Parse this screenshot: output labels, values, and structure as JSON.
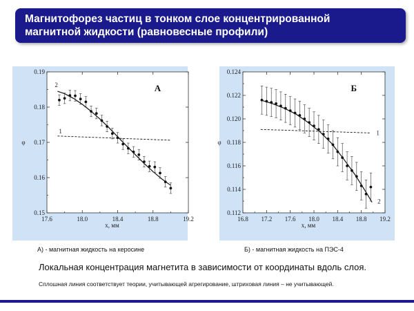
{
  "title": "Магнитофорез частиц в тонком слое концентрированной магнитной жидкости (равновесные профили)",
  "title_lines": [
    "Магнитофорез частиц в тонком слое концентрированной",
    "магнитной жидкости (равновесные профили)"
  ],
  "chart_data": [
    {
      "type": "scatter",
      "panel_label": "А",
      "ylabel": "φ",
      "xlabel": "x, мм",
      "xlim": [
        17.6,
        19.2
      ],
      "ylim": [
        0.15,
        0.19
      ],
      "xticks": [
        "17.6",
        "18.0",
        "18.4",
        "18.8",
        "19.2"
      ],
      "yticks": [
        "0.15",
        "0.16",
        "0.17",
        "0.18",
        "0.19"
      ],
      "grid": false,
      "points": {
        "x": [
          17.74,
          17.8,
          17.86,
          17.92,
          17.98,
          18.04,
          18.1,
          18.16,
          18.22,
          18.28,
          18.34,
          18.4,
          18.46,
          18.52,
          18.58,
          18.64,
          18.7,
          18.76,
          18.82,
          18.88,
          18.94,
          19.0
        ],
        "y": [
          0.182,
          0.1825,
          0.1833,
          0.1832,
          0.1823,
          0.1815,
          0.1788,
          0.1782,
          0.1762,
          0.1745,
          0.1725,
          0.1713,
          0.1695,
          0.1683,
          0.1673,
          0.1665,
          0.1645,
          0.1632,
          0.163,
          0.1613,
          0.1588,
          0.157
        ],
        "err": [
          0.0015,
          0.0015,
          0.0015,
          0.0015,
          0.0015,
          0.0015,
          0.0015,
          0.0015,
          0.0015,
          0.0015,
          0.0015,
          0.0015,
          0.0015,
          0.0015,
          0.0015,
          0.0015,
          0.0015,
          0.0015,
          0.0015,
          0.0015,
          0.0015,
          0.0015
        ]
      },
      "series": [
        {
          "name": "2",
          "style": "solid",
          "x": [
            17.72,
            17.8,
            17.9,
            18.0,
            18.1,
            18.2,
            18.3,
            18.4,
            18.5,
            18.6,
            18.7,
            18.8,
            18.9,
            19.0
          ],
          "y": [
            0.1845,
            0.1838,
            0.1825,
            0.1808,
            0.1788,
            0.1766,
            0.1742,
            0.1716,
            0.169,
            0.1665,
            0.164,
            0.1617,
            0.1596,
            0.1578
          ]
        },
        {
          "name": "1",
          "style": "dashed",
          "x": [
            17.72,
            19.0
          ],
          "y": [
            0.1718,
            0.1706
          ]
        }
      ]
    },
    {
      "type": "scatter",
      "panel_label": "Б",
      "ylabel": "φ",
      "xlabel": "x, мм",
      "xlim": [
        16.8,
        19.2
      ],
      "ylim": [
        0.112,
        0.124
      ],
      "xticks": [
        "16.8",
        "17.2",
        "17.6",
        "18.0",
        "18.4",
        "18.8",
        "19.2"
      ],
      "yticks": [
        "0.112",
        "0.114",
        "0.116",
        "0.118",
        "0.120",
        "0.122",
        "0.124"
      ],
      "grid": false,
      "points": {
        "x": [
          17.12,
          17.2,
          17.28,
          17.36,
          17.44,
          17.52,
          17.6,
          17.68,
          17.76,
          17.84,
          17.92,
          18.0,
          18.08,
          18.16,
          18.24,
          18.32,
          18.4,
          18.48,
          18.56,
          18.64,
          18.72,
          18.8,
          18.88,
          18.96
        ],
        "y": [
          0.1216,
          0.1215,
          0.1214,
          0.1213,
          0.1211,
          0.1209,
          0.1207,
          0.1205,
          0.1203,
          0.12,
          0.1197,
          0.1194,
          0.1191,
          0.1187,
          0.1183,
          0.1178,
          0.1172,
          0.1167,
          0.116,
          0.1156,
          0.1151,
          0.1143,
          0.1136,
          0.1142
        ],
        "err": [
          0.0012,
          0.0012,
          0.0012,
          0.0012,
          0.0012,
          0.0012,
          0.0012,
          0.0012,
          0.0012,
          0.0012,
          0.0012,
          0.0012,
          0.0012,
          0.0012,
          0.0012,
          0.0012,
          0.0012,
          0.0012,
          0.0012,
          0.0012,
          0.0012,
          0.0012,
          0.0012,
          0.0012
        ]
      },
      "series": [
        {
          "name": "2",
          "style": "solid",
          "x": [
            17.1,
            17.3,
            17.5,
            17.7,
            17.9,
            18.1,
            18.3,
            18.5,
            18.7,
            18.9,
            18.98
          ],
          "y": [
            0.1216,
            0.1213,
            0.1209,
            0.1204,
            0.1197,
            0.1189,
            0.1179,
            0.1166,
            0.1152,
            0.1136,
            0.1129
          ]
        },
        {
          "name": "1",
          "style": "dashed",
          "x": [
            17.1,
            18.96
          ],
          "y": [
            0.1191,
            0.1188
          ]
        }
      ]
    }
  ],
  "captions": {
    "a": "А) - магнитная жидкость на керосине",
    "b": "Б)  - магнитная жидкость на ПЭС-4",
    "main": "Локальная концентрация  магнетита   в зависимости  от  координаты вдоль слоя.",
    "note": "Сплошная линия соответствует  теории, учитывающей агрегирование, штриховая линия – не учитывающей."
  },
  "colors": {
    "title_bg": "#1a1a8c",
    "title_text": "#ffffff",
    "panel_bg": "#cfe2f6",
    "rule": "#1a1a8c"
  }
}
